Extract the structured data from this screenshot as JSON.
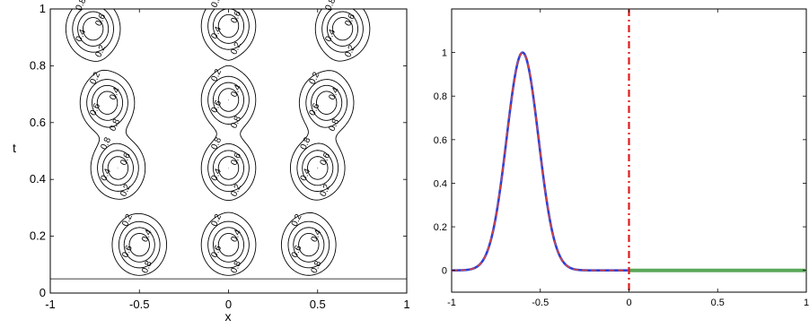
{
  "chart_data": [
    {
      "type": "contour",
      "xlabel": "x",
      "ylabel": "t",
      "xlim": [
        -1,
        1
      ],
      "ylim": [
        0,
        1
      ],
      "xticks": [
        "-1",
        "-0.5",
        "0",
        "0.5",
        "1"
      ],
      "yticks": [
        "0",
        "0.2",
        "0.4",
        "0.6",
        "0.8",
        "1"
      ],
      "contour_levels": [
        0.2,
        0.4,
        0.6,
        0.8,
        1
      ],
      "contour_label_text": [
        "0.2",
        "0.4",
        "0.6",
        "0.8",
        "1"
      ],
      "horizontal_line_t": 0.05,
      "peaks": [
        {
          "x": -0.76,
          "t": 0.93,
          "amplitude": 1
        },
        {
          "x": -0.68,
          "t": 0.67,
          "amplitude": 1
        },
        {
          "x": 0.0,
          "t": 0.94,
          "amplitude": 1
        },
        {
          "x": 0.0,
          "t": 0.68,
          "amplitude": 1
        },
        {
          "x": 0.64,
          "t": 0.93,
          "amplitude": 1
        },
        {
          "x": 0.55,
          "t": 0.67,
          "amplitude": 1
        },
        {
          "x": -0.62,
          "t": 0.44,
          "amplitude": 1
        },
        {
          "x": -0.5,
          "t": 0.17,
          "amplitude": 1
        },
        {
          "x": 0.0,
          "t": 0.44,
          "amplitude": 1
        },
        {
          "x": 0.0,
          "t": 0.17,
          "amplitude": 1
        },
        {
          "x": 0.5,
          "t": 0.44,
          "amplitude": 1
        },
        {
          "x": 0.45,
          "t": 0.17,
          "amplitude": 1
        }
      ]
    },
    {
      "type": "line",
      "xlim": [
        -1,
        1
      ],
      "ylim": [
        -0.1,
        1.2
      ],
      "xticks": [
        "-1",
        "-0.5",
        "0",
        "0.5",
        "1"
      ],
      "yticks": [
        "0",
        "0.2",
        "0.4",
        "0.6",
        "0.8",
        "1"
      ],
      "series": [
        {
          "style": "solid",
          "color": "#2b3fd9",
          "curve": "gaussian",
          "center": -0.6,
          "width": 0.09,
          "peak": 1,
          "domain": [
            -1,
            0
          ]
        },
        {
          "style": "dashed",
          "color": "#d9443a",
          "curve": "gaussian",
          "center": -0.6,
          "width": 0.09,
          "peak": 1,
          "domain": [
            -1,
            0
          ]
        },
        {
          "style": "solid-thick",
          "color": "#5aa85a",
          "curve": "constant",
          "value": 0,
          "domain": [
            0,
            1
          ]
        }
      ],
      "vertical_line": {
        "x": 0,
        "style": "dash-dot",
        "color": "#e01b1b"
      }
    }
  ]
}
